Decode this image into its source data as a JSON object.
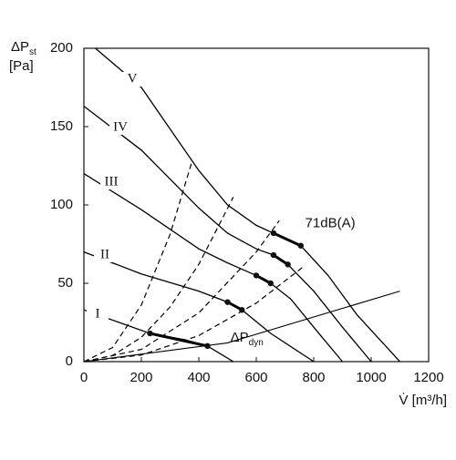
{
  "chart_data": {
    "type": "line",
    "y_label": "ΔP",
    "y_label_sub": "st",
    "y_unit": "[Pa]",
    "x_label": "V̇ [m³/h]",
    "xlim": [
      0,
      1200
    ],
    "xticks": [
      0,
      200,
      400,
      600,
      800,
      1000,
      1200
    ],
    "ylim": [
      0,
      200
    ],
    "yticks": [
      0,
      50,
      100,
      150,
      200
    ],
    "grid": false,
    "color": "#000000",
    "series": [
      {
        "name": "V",
        "style": "solid",
        "x": [
          40,
          200,
          400,
          500,
          600,
          660,
          755,
          850,
          950,
          1100
        ],
        "values": [
          200,
          175,
          122,
          100,
          87,
          82,
          74,
          55,
          30,
          0
        ]
      },
      {
        "name": "IV",
        "style": "solid",
        "x": [
          0,
          200,
          400,
          500,
          600,
          660,
          710,
          800,
          900,
          1000
        ],
        "values": [
          163,
          135,
          98,
          82,
          72,
          68,
          62,
          45,
          22,
          0
        ]
      },
      {
        "name": "III",
        "style": "solid",
        "x": [
          0,
          200,
          400,
          500,
          600,
          650,
          720,
          800,
          900
        ],
        "values": [
          120,
          97,
          72,
          63,
          55,
          50,
          40,
          22,
          0
        ]
      },
      {
        "name": "II",
        "style": "solid",
        "x": [
          0,
          200,
          400,
          500,
          550,
          650,
          800
        ],
        "values": [
          70,
          56,
          45,
          38,
          33,
          18,
          0
        ]
      },
      {
        "name": "I",
        "style": "solid",
        "x": [
          0,
          230,
          350,
          430,
          520
        ],
        "values": [
          33,
          18,
          14,
          10,
          0
        ]
      },
      {
        "style": "dashed",
        "x": [
          0,
          100,
          200,
          300,
          375
        ],
        "values": [
          0,
          9,
          36.1,
          81.3,
          127
        ]
      },
      {
        "style": "dashed",
        "x": [
          0,
          100,
          200,
          300,
          400,
          520
        ],
        "values": [
          0,
          3.9,
          15.5,
          34.9,
          62.1,
          105
        ]
      },
      {
        "style": "dashed",
        "x": [
          0,
          200,
          400,
          600,
          680
        ],
        "values": [
          0,
          7.8,
          31.1,
          70,
          90
        ]
      },
      {
        "style": "dashed",
        "x": [
          0,
          200,
          400,
          600,
          760
        ],
        "values": [
          0,
          4.2,
          16.6,
          37.4,
          60
        ]
      },
      {
        "style": "thin",
        "x": [
          0,
          500,
          1100
        ],
        "values": [
          0,
          12,
          45
        ]
      },
      {
        "style": "thick",
        "x": [
          660,
          755,
          755,
          660,
          710,
          710,
          600,
          650,
          650,
          500,
          550,
          550,
          230,
          430
        ],
        "values": [
          82,
          74,
          null,
          68,
          62,
          null,
          55,
          50,
          null,
          38,
          33,
          null,
          18,
          10
        ]
      }
    ],
    "annotations": [
      {
        "text": "71dB(A)",
        "x": 770,
        "y": 88
      },
      {
        "text": "ΔP",
        "sub": "dyn",
        "x": 510,
        "y": 15
      }
    ]
  }
}
